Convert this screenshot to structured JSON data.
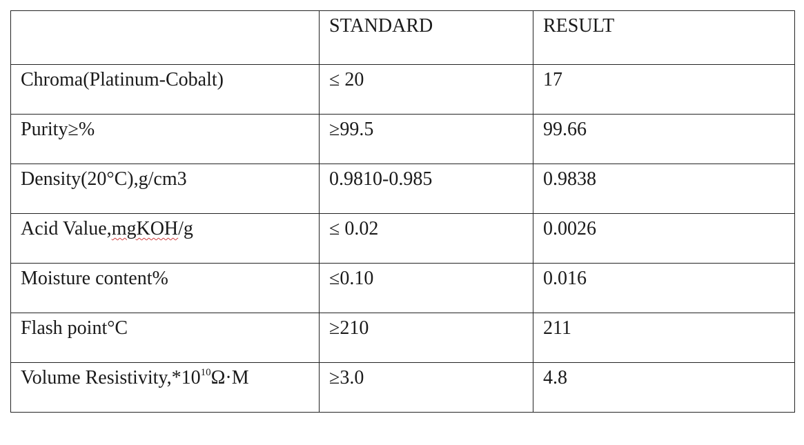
{
  "table": {
    "headers": [
      "",
      "STANDARD",
      "RESULT"
    ],
    "rows": [
      {
        "property": "Chroma(Platinum-Cobalt)",
        "standard": "≤ 20",
        "result": "17"
      },
      {
        "property": "Purity≥%",
        "standard": "≥99.5",
        "result": "99.66"
      },
      {
        "property": "Density(20°C),g/cm3",
        "standard": "0.9810-0.985",
        "result": "0.9838"
      },
      {
        "property_prefix": "Acid Value,",
        "property_marked": "mgKOH",
        "property_suffix": "/g",
        "standard": "≤ 0.02",
        "result": "0.0026"
      },
      {
        "property": "Moisture content%",
        "standard": "≤0.10",
        "result": "0.016"
      },
      {
        "property": "Flash point°C",
        "standard": "≥210",
        "result": "211"
      },
      {
        "property_prefix": "Volume Resistivity,*10",
        "property_exponent": "10",
        "property_suffix": "Ω·M",
        "standard": "≥3.0",
        "result": "4.8"
      }
    ]
  },
  "colors": {
    "text": "#1a1a1a",
    "border": "#222222",
    "spellcheck_underline": "#d04040"
  }
}
